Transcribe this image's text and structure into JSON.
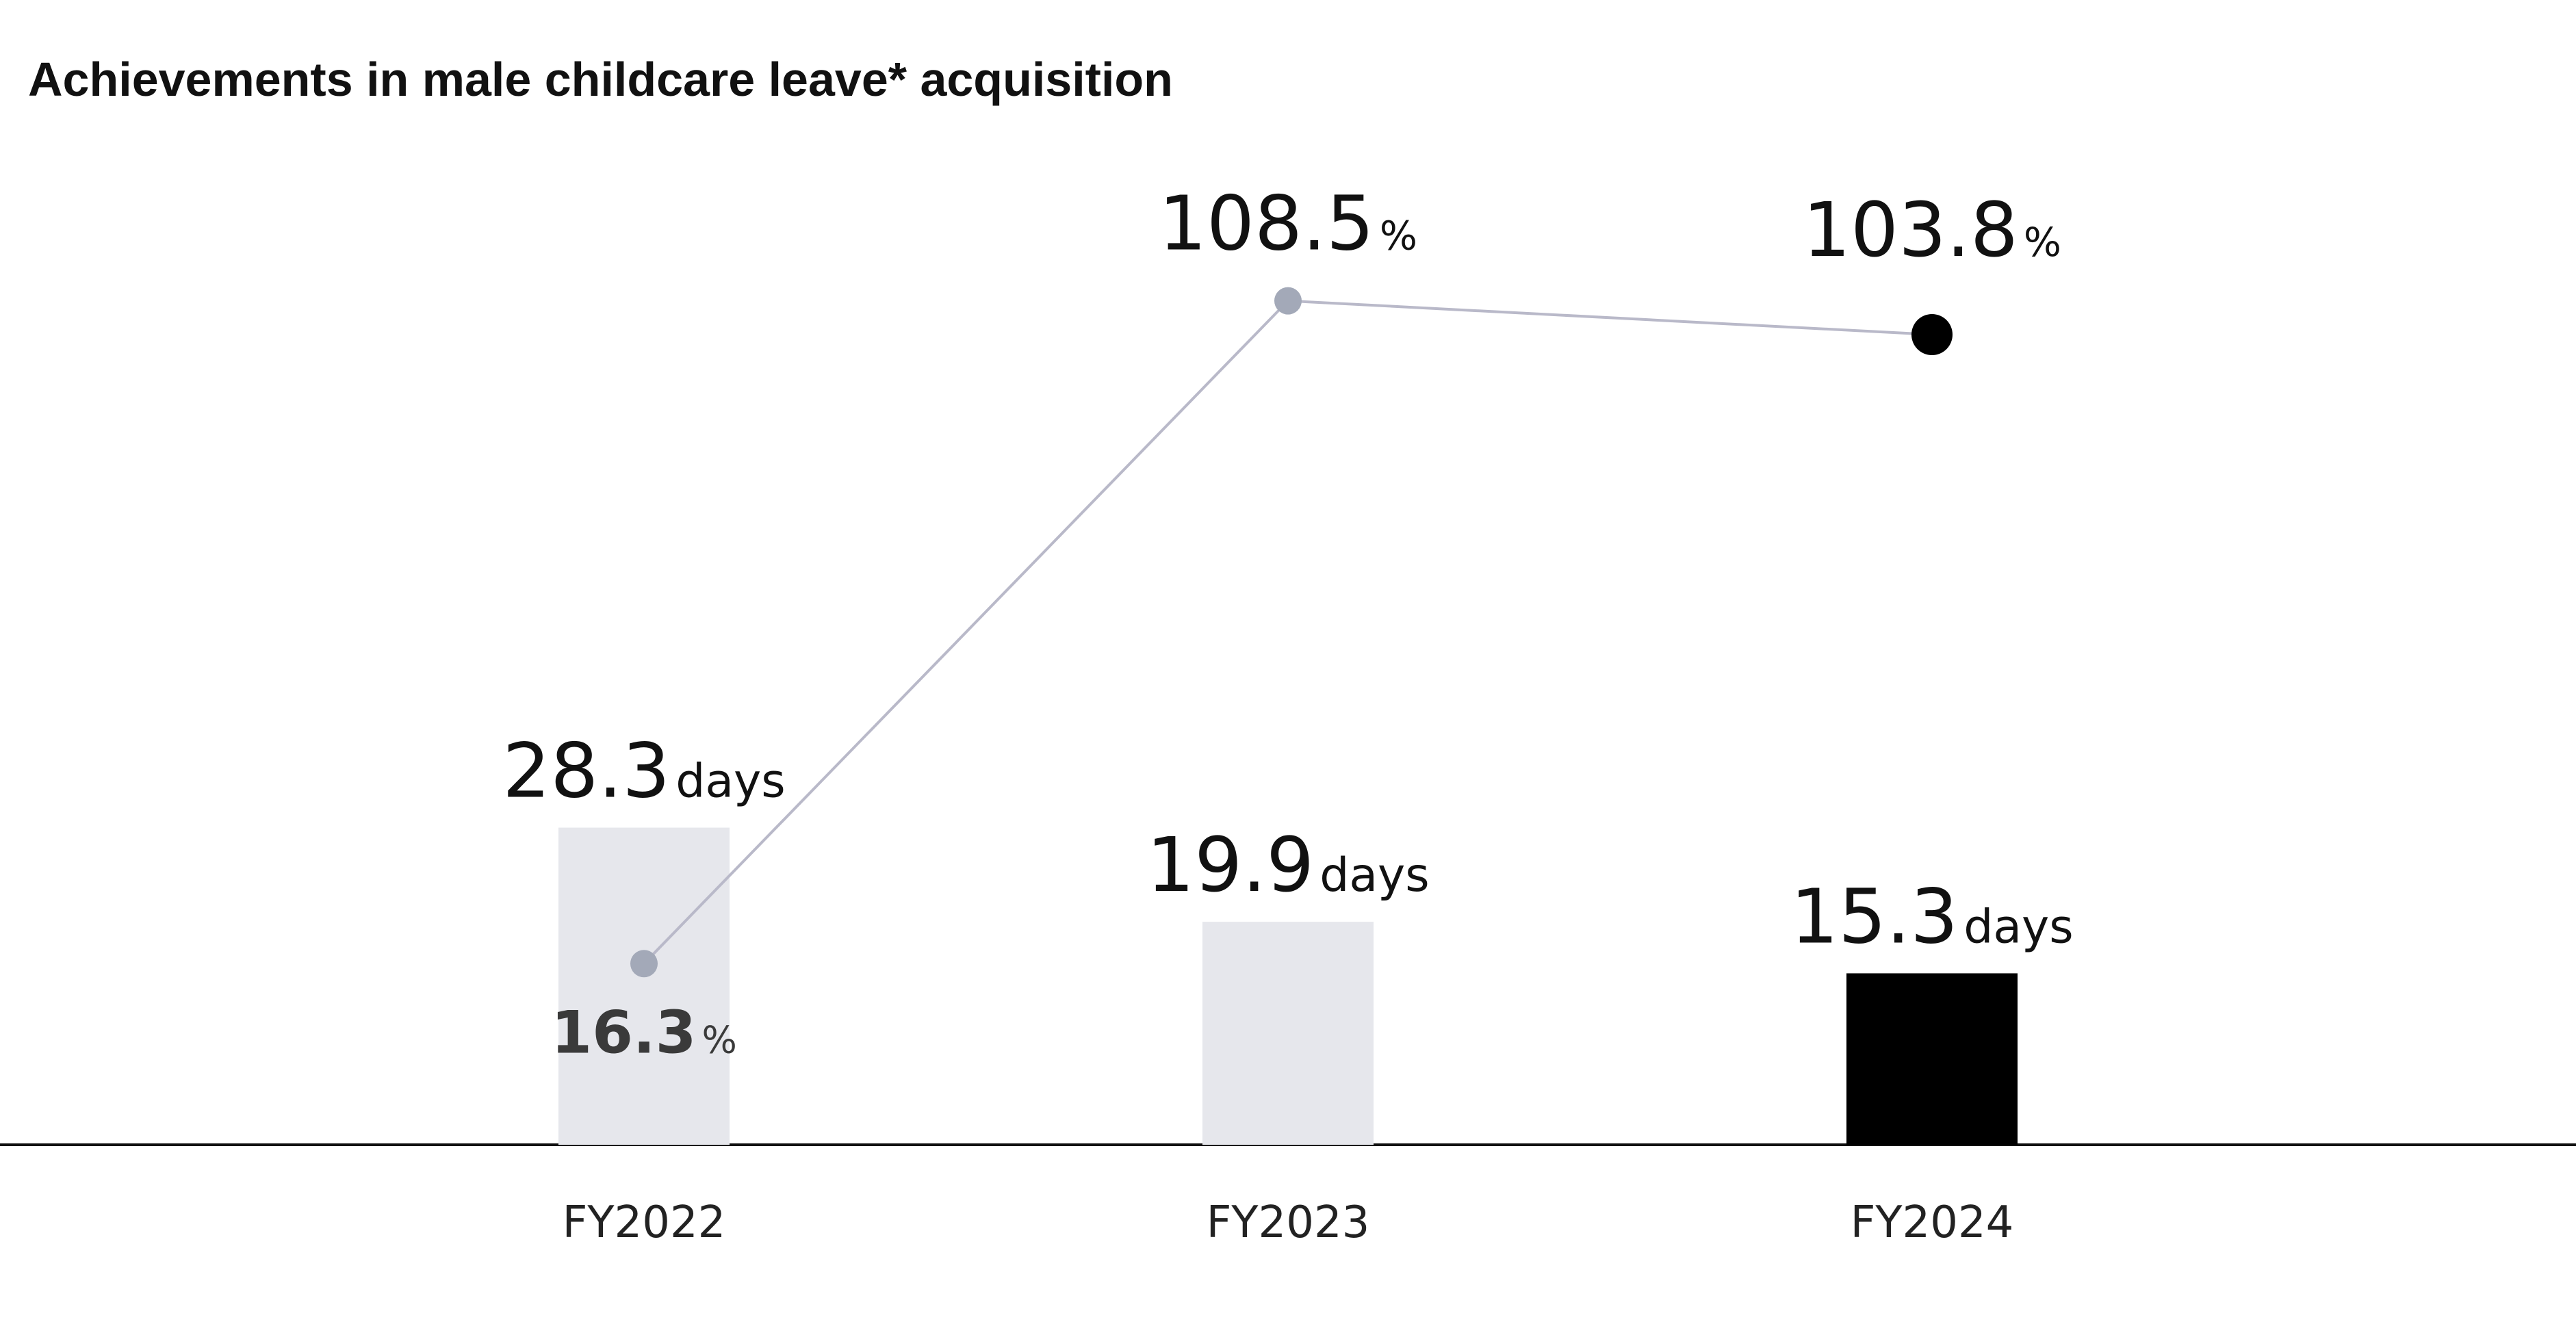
{
  "chart_data": {
    "type": "bar_line",
    "title": "Achievements in male childcare leave* acquisition",
    "categories": [
      "FY2022",
      "FY2023",
      "FY2024"
    ],
    "series": [
      {
        "type": "bar",
        "unit": "days",
        "values": [
          28.3,
          19.9,
          15.3
        ],
        "colors": [
          "#e6e7ec",
          "#e6e7ec",
          "#000000"
        ]
      },
      {
        "type": "line",
        "axis": "y2",
        "unit": "%",
        "values": [
          16.3,
          108.5,
          103.8
        ],
        "color": "#b9b9c9",
        "colors": [
          "#a3a9b8",
          "#a3a9b8",
          "#000000"
        ]
      }
    ],
    "ylim": [
      0,
      87.5
    ],
    "y2lim": [
      -8.9,
      127.5
    ]
  }
}
